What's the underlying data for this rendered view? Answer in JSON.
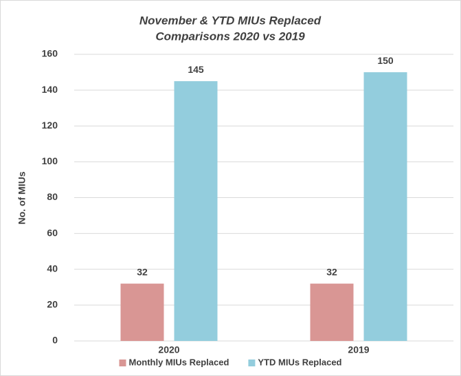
{
  "chart_data": {
    "type": "bar",
    "title": [
      "November & YTD MIUs Replaced",
      "Comparisons 2020 vs 2019"
    ],
    "y_label": "No. of MIUs",
    "categories": [
      "2020",
      "2019"
    ],
    "series": [
      {
        "name": "Monthly MIUs Replaced",
        "color": "#d99694",
        "values": [
          32,
          32
        ]
      },
      {
        "name": "YTD MIUs Replaced",
        "color": "#93cddd",
        "values": [
          145,
          150
        ]
      }
    ],
    "ylim": [
      0,
      160
    ],
    "yticks": [
      0,
      20,
      40,
      60,
      80,
      100,
      120,
      140,
      160
    ],
    "grid": true,
    "legend": "bottom"
  }
}
